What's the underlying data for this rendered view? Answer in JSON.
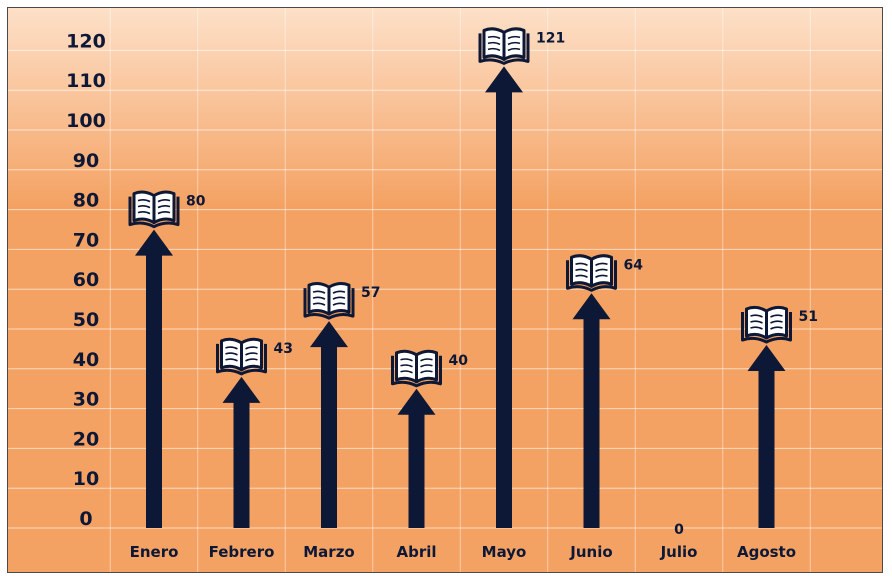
{
  "chart_data": {
    "type": "bar",
    "title": "",
    "xlabel": "",
    "ylabel": "",
    "categories": [
      "Enero",
      "Febrero",
      "Marzo",
      "Abril",
      "Mayo",
      "Junio",
      "Julio",
      "Agosto"
    ],
    "values": [
      80,
      43,
      57,
      40,
      121,
      64,
      0,
      51
    ],
    "value_labels": [
      "80",
      "43",
      "57",
      "40",
      "121",
      "64",
      "0",
      "51"
    ],
    "y_ticks": [
      "0",
      "10",
      "20",
      "30",
      "40",
      "50",
      "60",
      "70",
      "80",
      "90",
      "100",
      "110",
      "120"
    ],
    "ylim": [
      0,
      120
    ],
    "grid": true,
    "legend": "none",
    "mark": "arrow-with-book-icon",
    "bar_icon": "open-book-icon",
    "colors": {
      "background_top": "#fde0c8",
      "background_bottom": "#f4a263",
      "bar": "#0d1736",
      "grid": "#ffffff",
      "text": "#0d1736"
    }
  }
}
